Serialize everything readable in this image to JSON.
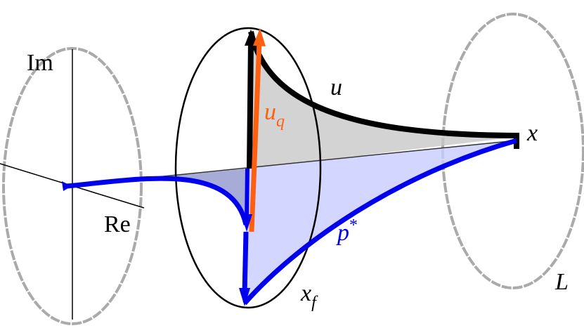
{
  "labels": {
    "im": "Im",
    "re": "Re",
    "u": "u",
    "u_q": {
      "main": "u",
      "sub": "q"
    },
    "x": "x",
    "p_star": {
      "main": "p",
      "sup": "*"
    },
    "x_f": {
      "main": "x",
      "sub": "f"
    },
    "L": "L"
  }
}
